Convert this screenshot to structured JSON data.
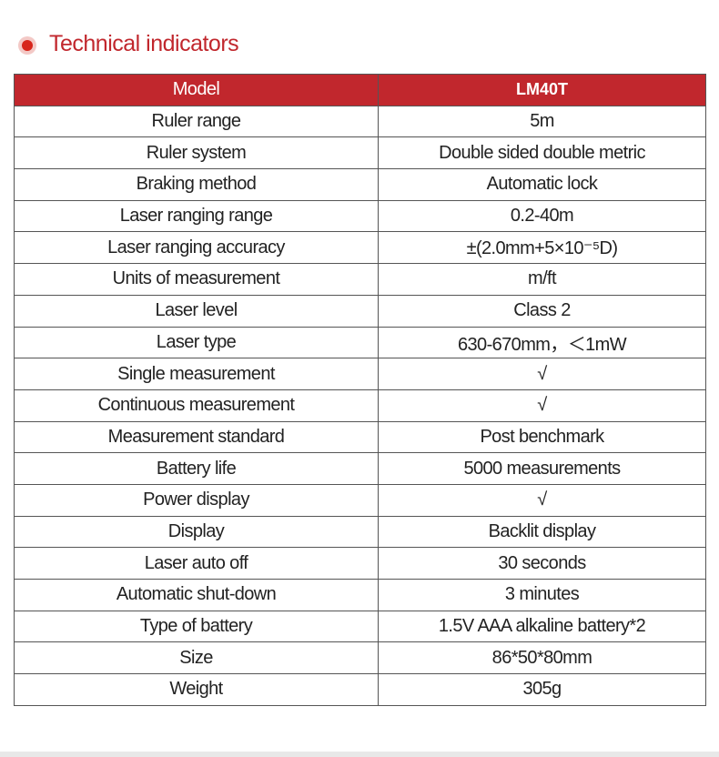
{
  "header": {
    "title": "Technical indicators"
  },
  "table": {
    "columns": [
      "Model",
      "LM40T"
    ],
    "rows": [
      [
        "Ruler range",
        "5m"
      ],
      [
        "Ruler system",
        "Double sided double metric"
      ],
      [
        "Braking method",
        "Automatic lock"
      ],
      [
        "Laser ranging range",
        "0.2-40m"
      ],
      [
        "Laser ranging accuracy",
        "±(2.0mm+5×10⁻⁵D)"
      ],
      [
        "Units of measurement",
        "m/ft"
      ],
      [
        "Laser level",
        "Class 2"
      ],
      [
        "Laser type",
        "630-670mm，＜1mW"
      ],
      [
        "Single measurement",
        "√"
      ],
      [
        "Continuous measurement",
        "√"
      ],
      [
        "Measurement standard",
        "Post benchmark"
      ],
      [
        "Battery life",
        "5000 measurements"
      ],
      [
        "Power display",
        "√"
      ],
      [
        "Display",
        "Backlit display"
      ],
      [
        "Laser auto off",
        "30 seconds"
      ],
      [
        "Automatic shut-down",
        "3 minutes"
      ],
      [
        "Type of battery",
        "1.5V AAA alkaline battery*2"
      ],
      [
        "Size",
        "86*50*80mm"
      ],
      [
        "Weight",
        "305g"
      ]
    ]
  }
}
